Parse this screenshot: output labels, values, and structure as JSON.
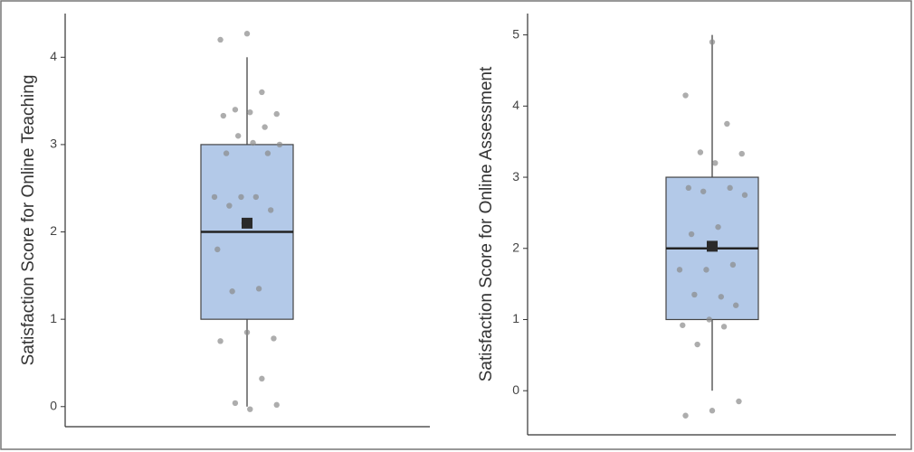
{
  "chart_data": [
    {
      "type": "box",
      "ylabel": "Satisfaction Score for Online Teaching",
      "ylim": [
        -0.23,
        4.5
      ],
      "yticks": [
        0,
        1,
        2,
        3,
        4
      ],
      "box": {
        "min": 0,
        "q1": 1,
        "median": 2,
        "q3": 3,
        "max": 4,
        "mean": 2.1
      },
      "points": [
        4.27,
        4.2,
        3.6,
        3.4,
        3.35,
        3.37,
        3.33,
        3.2,
        3.1,
        3.0,
        3.02,
        2.9,
        2.9,
        2.4,
        2.4,
        2.4,
        2.3,
        2.25,
        2.1,
        1.8,
        1.35,
        1.32,
        0.78,
        0.85,
        0.75,
        0.32,
        0.04,
        0.02,
        -0.03
      ],
      "color": "#b3c9e8",
      "point_color": "#8a8a8a"
    },
    {
      "type": "box",
      "ylabel": "Satisfaction Score for Online Assessment",
      "ylim": [
        -0.62,
        5.3
      ],
      "yticks": [
        0,
        1,
        2,
        3,
        4,
        5
      ],
      "box": {
        "min": 0,
        "q1": 1,
        "median": 2,
        "q3": 3,
        "max": 5,
        "mean": 2.03
      },
      "points": [
        4.9,
        4.15,
        3.75,
        3.35,
        3.33,
        3.2,
        2.85,
        2.85,
        2.8,
        2.75,
        2.3,
        2.2,
        1.77,
        1.7,
        1.7,
        1.32,
        1.35,
        1.2,
        1.0,
        0.92,
        0.9,
        0.65,
        -0.15,
        -0.28,
        -0.35
      ],
      "color": "#b3c9e8",
      "point_color": "#8a8a8a"
    }
  ]
}
